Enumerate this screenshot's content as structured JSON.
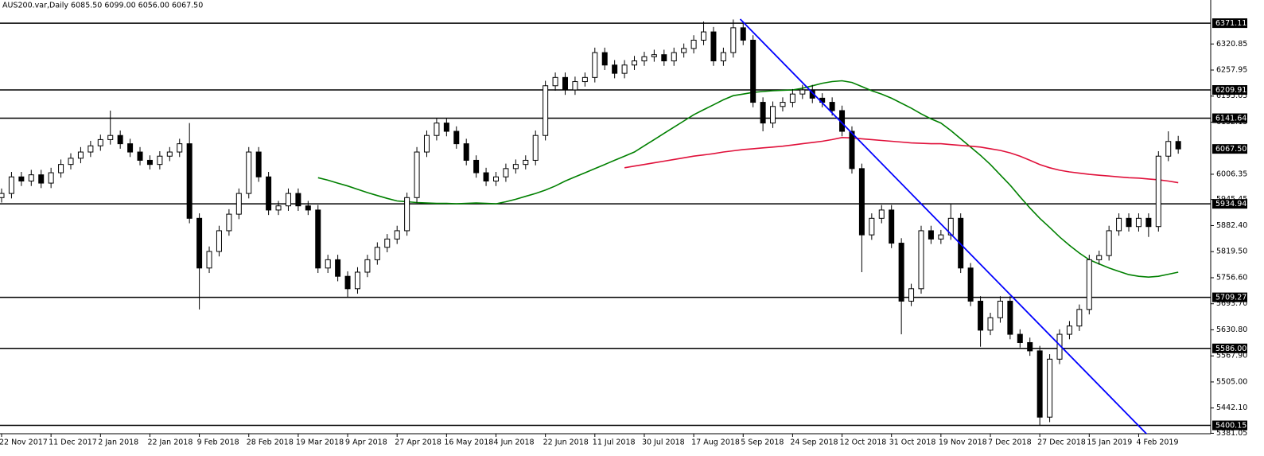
{
  "chart_data": {
    "type": "candlestick",
    "title": "AUS200.var,Daily  6085.50 6099.00 6056.00 6067.50",
    "categories": [
      "22 Nov 2017",
      null,
      null,
      null,
      null,
      "11 Dec 2017",
      null,
      null,
      null,
      null,
      "2 Jan 2018",
      null,
      null,
      null,
      null,
      "22 Jan 2018",
      null,
      null,
      null,
      null,
      "9 Feb 2018",
      null,
      null,
      null,
      null,
      "28 Feb 2018",
      null,
      null,
      null,
      null,
      "19 Mar 2018",
      null,
      null,
      null,
      null,
      "9 Apr 2018",
      null,
      null,
      null,
      null,
      "27 Apr 2018",
      null,
      null,
      null,
      null,
      "16 May 2018",
      null,
      null,
      null,
      null,
      "4 Jun 2018",
      null,
      null,
      null,
      null,
      "22 Jun 2018",
      null,
      null,
      null,
      null,
      "11 Jul 2018",
      null,
      null,
      null,
      null,
      "30 Jul 2018",
      null,
      null,
      null,
      null,
      "17 Aug 2018",
      null,
      null,
      null,
      null,
      "5 Sep 2018",
      null,
      null,
      null,
      null,
      "24 Sep 2018",
      null,
      null,
      null,
      null,
      "12 Oct 2018",
      null,
      null,
      null,
      null,
      "31 Oct 2018",
      null,
      null,
      null,
      null,
      "19 Nov 2018",
      null,
      null,
      null,
      null,
      "7 Dec 2018",
      null,
      null,
      null,
      null,
      "27 Dec 2018",
      null,
      null,
      null,
      null,
      "15 Jan 2019",
      null,
      null,
      null,
      null,
      "4 Feb 2019",
      null,
      null,
      null,
      null
    ],
    "candles": {
      "up_color": "#ffffff",
      "down_color": "#000000",
      "outline": "#000000",
      "open": [
        5950,
        5960,
        6000,
        5990,
        6005,
        5985,
        6010,
        6030,
        6045,
        6060,
        6075,
        6090,
        6100,
        6080,
        6060,
        6040,
        6030,
        6050,
        6060,
        6080,
        5900,
        5780,
        5820,
        5870,
        5910,
        5960,
        6060,
        6000,
        5920,
        5930,
        5960,
        5930,
        5920,
        5780,
        5800,
        5760,
        5730,
        5770,
        5800,
        5830,
        5850,
        5870,
        5950,
        6060,
        6100,
        6130,
        6110,
        6080,
        6040,
        6010,
        5990,
        6000,
        6020,
        6030,
        6040,
        6100,
        6220,
        6240,
        6210,
        6230,
        6240,
        6300,
        6270,
        6250,
        6270,
        6280,
        6290,
        6295,
        6280,
        6300,
        6310,
        6330,
        6350,
        6280,
        6300,
        6360,
        6330,
        6180,
        6130,
        6170,
        6180,
        6200,
        6210,
        6190,
        6180,
        6160,
        6110,
        6020,
        5860,
        5900,
        5920,
        5840,
        5700,
        5730,
        5870,
        5850,
        5860,
        5900,
        5780,
        5700,
        5630,
        5660,
        5700,
        5620,
        5600,
        5580,
        5420,
        5560,
        5620,
        5640,
        5680,
        5800,
        5810,
        5870,
        5900,
        5880,
        5900,
        5880,
        6050,
        6085.5
      ],
      "high": [
        5972,
        6012,
        6012,
        6017,
        6017,
        6022,
        6042,
        6057,
        6072,
        6087,
        6102,
        6160,
        6112,
        6092,
        6072,
        6052,
        6062,
        6072,
        6092,
        6130,
        5912,
        5832,
        5882,
        5922,
        5972,
        6072,
        6072,
        6012,
        5942,
        5972,
        5972,
        5942,
        5932,
        5812,
        5812,
        5772,
        5782,
        5812,
        5842,
        5862,
        5882,
        5962,
        6072,
        6112,
        6142,
        6142,
        6122,
        6092,
        6052,
        6022,
        6012,
        6032,
        6042,
        6052,
        6112,
        6232,
        6252,
        6252,
        6242,
        6252,
        6312,
        6312,
        6282,
        6282,
        6292,
        6302,
        6307,
        6307,
        6312,
        6322,
        6342,
        6375,
        6362,
        6312,
        6380,
        6372,
        6342,
        6192,
        6182,
        6192,
        6212,
        6222,
        6222,
        6202,
        6192,
        6172,
        6122,
        6032,
        5912,
        5932,
        5932,
        5852,
        5742,
        5882,
        5882,
        5872,
        5935,
        5912,
        5792,
        5712,
        5672,
        5712,
        5712,
        5632,
        5612,
        5592,
        5572,
        5632,
        5652,
        5692,
        5812,
        5822,
        5882,
        5912,
        5912,
        5912,
        5912,
        6062,
        6110,
        6099
      ],
      "low": [
        5938,
        5948,
        5978,
        5978,
        5973,
        5973,
        5998,
        6018,
        6033,
        6048,
        6063,
        6078,
        6068,
        6048,
        6028,
        6018,
        6018,
        6038,
        6048,
        5888,
        5680,
        5768,
        5808,
        5858,
        5898,
        5948,
        5988,
        5908,
        5908,
        5918,
        5918,
        5908,
        5768,
        5768,
        5748,
        5710,
        5718,
        5758,
        5788,
        5818,
        5838,
        5858,
        5938,
        6048,
        6088,
        6098,
        6068,
        6028,
        5998,
        5978,
        5978,
        5988,
        6008,
        6018,
        6028,
        6088,
        6208,
        6198,
        6198,
        6218,
        6228,
        6258,
        6238,
        6238,
        6258,
        6268,
        6278,
        6268,
        6268,
        6288,
        6298,
        6318,
        6268,
        6268,
        6288,
        6318,
        6168,
        6110,
        6118,
        6158,
        6168,
        6188,
        6178,
        6168,
        6148,
        6098,
        6008,
        5770,
        5848,
        5888,
        5828,
        5620,
        5688,
        5718,
        5838,
        5838,
        5848,
        5768,
        5688,
        5590,
        5618,
        5648,
        5608,
        5588,
        5568,
        5400,
        5408,
        5548,
        5608,
        5628,
        5668,
        5788,
        5798,
        5858,
        5868,
        5868,
        5855,
        5868,
        6038,
        6056
      ],
      "close": [
        5960,
        6000,
        5990,
        6005,
        5985,
        6010,
        6030,
        6045,
        6060,
        6075,
        6090,
        6100,
        6080,
        6060,
        6040,
        6030,
        6050,
        6060,
        6080,
        5900,
        5780,
        5820,
        5870,
        5910,
        5960,
        6060,
        6000,
        5920,
        5930,
        5960,
        5930,
        5920,
        5780,
        5800,
        5760,
        5730,
        5770,
        5800,
        5830,
        5850,
        5870,
        5950,
        6060,
        6100,
        6130,
        6110,
        6080,
        6040,
        6010,
        5990,
        6000,
        6020,
        6030,
        6040,
        6100,
        6220,
        6240,
        6210,
        6230,
        6240,
        6300,
        6270,
        6250,
        6270,
        6280,
        6290,
        6295,
        6280,
        6300,
        6310,
        6330,
        6350,
        6280,
        6300,
        6360,
        6330,
        6180,
        6130,
        6170,
        6180,
        6200,
        6210,
        6190,
        6180,
        6160,
        6110,
        6020,
        5860,
        5900,
        5920,
        5840,
        5700,
        5730,
        5870,
        5850,
        5860,
        5900,
        5780,
        5700,
        5630,
        5660,
        5700,
        5620,
        5600,
        5580,
        5420,
        5560,
        5620,
        5640,
        5680,
        5800,
        5810,
        5870,
        5900,
        5880,
        5900,
        5880,
        6050,
        6085.5,
        6067.5
      ]
    },
    "moving_averages": [
      {
        "color": "#008000",
        "values": [
          null,
          null,
          null,
          null,
          null,
          null,
          null,
          null,
          null,
          null,
          null,
          null,
          null,
          null,
          null,
          null,
          null,
          null,
          null,
          null,
          null,
          null,
          null,
          null,
          null,
          null,
          null,
          null,
          null,
          null,
          null,
          null,
          5998,
          5992,
          5985,
          5978,
          5970,
          5962,
          5955,
          5948,
          5942,
          5940,
          5938,
          5937,
          5936,
          5936,
          5935,
          5936,
          5937,
          5936,
          5935,
          5940,
          5946,
          5953,
          5960,
          5968,
          5978,
          5990,
          6000,
          6010,
          6020,
          6030,
          6040,
          6050,
          6060,
          6075,
          6090,
          6105,
          6120,
          6135,
          6150,
          6162,
          6174,
          6186,
          6196,
          6200,
          6204,
          6206,
          6208,
          6209,
          6210,
          6214,
          6220,
          6226,
          6230,
          6232,
          6228,
          6218,
          6208,
          6200,
          6190,
          6178,
          6166,
          6152,
          6140,
          6130,
          6112,
          6092,
          6072,
          6052,
          6030,
          6005,
          5980,
          5952,
          5925,
          5900,
          5878,
          5855,
          5835,
          5816,
          5800,
          5790,
          5780,
          5772,
          5764,
          5760,
          5758,
          5760,
          5765,
          5770
        ]
      },
      {
        "color": "#e0103a",
        "values": [
          null,
          null,
          null,
          null,
          null,
          null,
          null,
          null,
          null,
          null,
          null,
          null,
          null,
          null,
          null,
          null,
          null,
          null,
          null,
          null,
          null,
          null,
          null,
          null,
          null,
          null,
          null,
          null,
          null,
          null,
          null,
          null,
          null,
          null,
          null,
          null,
          null,
          null,
          null,
          null,
          null,
          null,
          null,
          null,
          null,
          null,
          null,
          null,
          null,
          null,
          null,
          null,
          null,
          null,
          null,
          null,
          null,
          null,
          null,
          null,
          null,
          null,
          null,
          6022,
          6026,
          6030,
          6034,
          6038,
          6042,
          6046,
          6050,
          6053,
          6056,
          6060,
          6063,
          6066,
          6068,
          6070,
          6072,
          6074,
          6077,
          6080,
          6083,
          6086,
          6090,
          6095,
          6094,
          6092,
          6090,
          6088,
          6086,
          6084,
          6082,
          6081,
          6080,
          6080,
          6078,
          6076,
          6074,
          6072,
          6068,
          6064,
          6058,
          6050,
          6040,
          6030,
          6022,
          6016,
          6012,
          6009,
          6006,
          6004,
          6002,
          6000,
          5998,
          5997,
          5995,
          5993,
          5990,
          5986
        ]
      }
    ],
    "trendline": {
      "color": "#0000ff",
      "x": [
        74.7,
        117.3
      ],
      "values": [
        6381,
        5343
      ]
    },
    "levels": [
      6371.11,
      6209.91,
      6141.64,
      5934.94,
      5709.27,
      {
        "value": 5586,
        "label": "5586.00"
      },
      5400.15
    ],
    "price_marker": {
      "value": 6067.5,
      "label": "6067.50"
    },
    "ylim": [
      5380,
      6427
    ],
    "yticks": [
      6320.85,
      6257.95,
      6195.05,
      6132.15,
      6006.35,
      5945.45,
      {
        "value": 5882.4,
        "label": "5882.40"
      },
      {
        "value": 5819.5,
        "label": "5819.50"
      },
      {
        "value": 5756.6,
        "label": "5756.60"
      },
      {
        "value": 5693.7,
        "label": "5693.70"
      },
      {
        "value": 5630.8,
        "label": "5630.80"
      },
      {
        "value": 5567.9,
        "label": "5567.90"
      },
      {
        "value": 5505,
        "label": "5505.00"
      },
      {
        "value": 5442.1,
        "label": "5442.10"
      },
      5381.05
    ]
  }
}
